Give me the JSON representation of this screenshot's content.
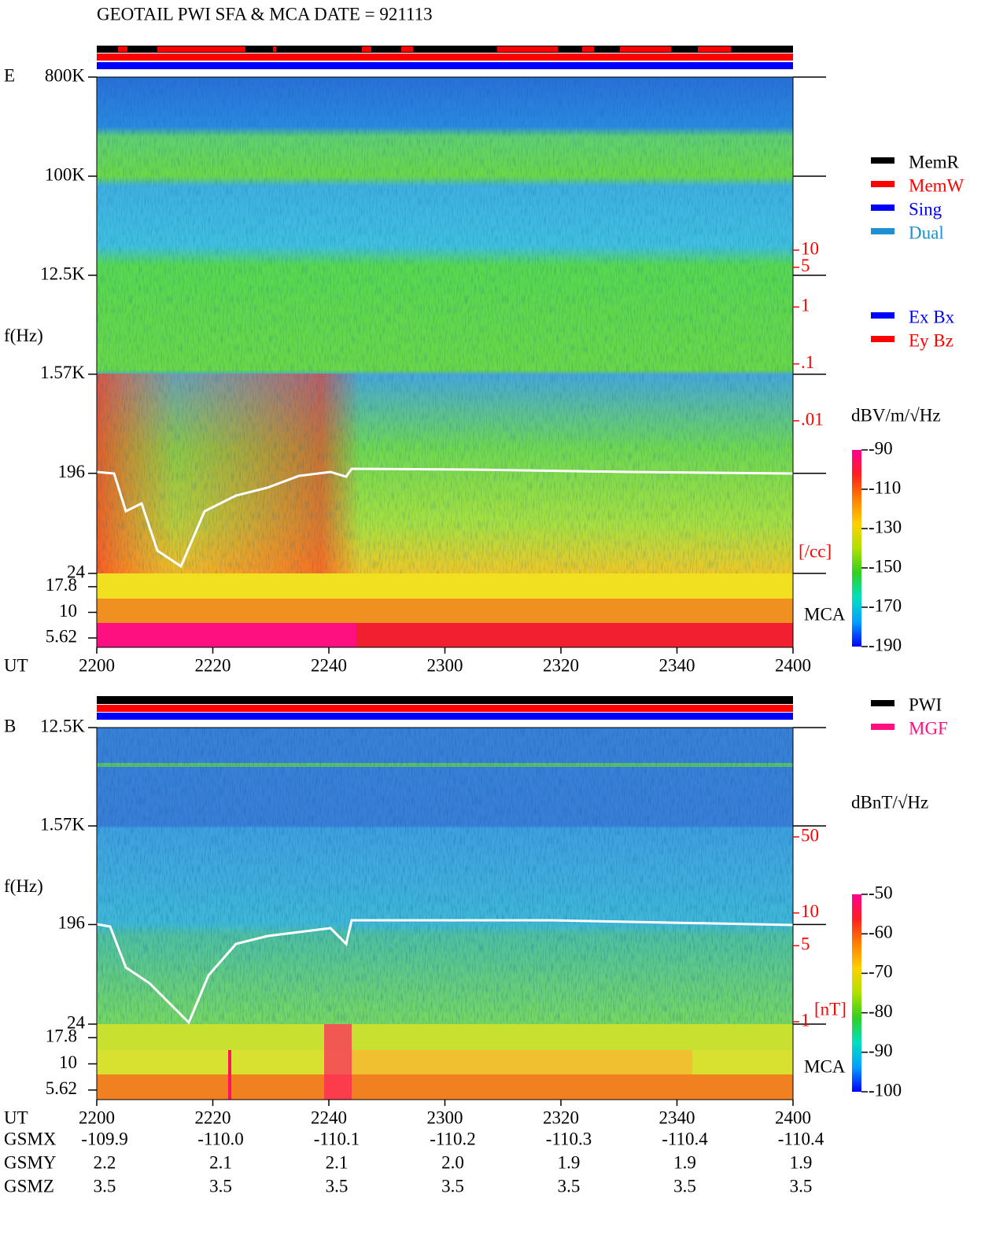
{
  "chart_data": [
    {
      "type": "spectrogram",
      "title": "GEOTAIL  PWI SFA & MCA   DATE = 921113",
      "panel_label": "E",
      "y_label": "f(Hz)",
      "x_label": "UT",
      "yscale": "log",
      "ylim": [
        24,
        800000
      ],
      "yticks": [
        {
          "value": 800000,
          "label": "800K"
        },
        {
          "value": 100000,
          "label": "100K"
        },
        {
          "value": 12500,
          "label": "12.5K"
        },
        {
          "value": 1570,
          "label": "1.57K"
        },
        196,
        24
      ],
      "mca_label": "MCA",
      "mca_ylim": [
        4.55,
        24
      ],
      "mca_yticks": [
        17.8,
        10,
        5.62
      ],
      "categories": [
        "2200",
        "2220",
        "2240",
        "2300",
        "2320",
        "2340",
        "2400"
      ],
      "y2lim": [
        0.01,
        10
      ],
      "y2ticks": [
        10,
        5,
        1,
        {
          "value": 0.1,
          "label": ".1"
        },
        {
          "value": 0.01,
          "label": ".01"
        }
      ],
      "y2_label": "[/cc]",
      "y2_color": "#ff0000",
      "colorbar": {
        "label": "dBV/m/√Hz",
        "clim": [
          -190,
          -90
        ],
        "ticks": [
          -90,
          -110,
          -130,
          -150,
          -170,
          -190
        ],
        "colors": [
          "#0000ff",
          "#00a0ff",
          "#00e0c0",
          "#30d020",
          "#b0e000",
          "#ffd000",
          "#ff8000",
          "#ff2020",
          "#ff0090"
        ]
      },
      "legend": [
        {
          "name": "MemR",
          "color": "#000000"
        },
        {
          "name": "MemW",
          "color": "#ff0000"
        },
        {
          "name": "Sing",
          "color": "#0000ff"
        },
        {
          "name": "Dual",
          "color": "#2090d0"
        }
      ],
      "legend2": [
        {
          "name": "Ex Bx",
          "color": "#0000ff"
        },
        {
          "name": "Ey Bz",
          "color": "#ff0000"
        }
      ]
    },
    {
      "type": "spectrogram",
      "panel_label": "B",
      "y_label": "f(Hz)",
      "x_label": "UT",
      "yscale": "log",
      "ylim": [
        24,
        12500
      ],
      "yticks": [
        {
          "value": 12500,
          "label": "12.5K"
        },
        {
          "value": 1570,
          "label": "1.57K"
        },
        196,
        24
      ],
      "mca_label": "MCA",
      "mca_ylim": [
        4.55,
        24
      ],
      "mca_yticks": [
        17.8,
        10,
        5.62
      ],
      "categories": [
        "2200",
        "2220",
        "2240",
        "2300",
        "2320",
        "2340",
        "2400"
      ],
      "y2lim": [
        1,
        50
      ],
      "y2ticks": [
        50,
        10,
        5,
        1
      ],
      "y2_label": "[nT]",
      "y2_color": "#ff0000",
      "colorbar": {
        "label": "dBnT/√Hz",
        "clim": [
          -100,
          -50
        ],
        "ticks": [
          -50,
          -60,
          -70,
          -80,
          -90,
          -100
        ],
        "colors": [
          "#0000ff",
          "#00a0ff",
          "#00e0c0",
          "#30d020",
          "#b0e000",
          "#ffd000",
          "#ff8000",
          "#ff2020",
          "#ff0090"
        ]
      },
      "legend": [
        {
          "name": "PWI",
          "color": "#000000"
        },
        {
          "name": "MGF",
          "color": "#ff1080"
        }
      ],
      "orbit": [
        {
          "label": "GSMX",
          "values": [
            "-109.9",
            "-110.0",
            "-110.1",
            "-110.2",
            "-110.3",
            "-110.4",
            "-110.4"
          ]
        },
        {
          "label": "GSMY",
          "values": [
            "2.2",
            "2.1",
            "2.1",
            "2.0",
            "1.9",
            "1.9",
            "1.9"
          ]
        },
        {
          "label": "GSMZ",
          "values": [
            "3.5",
            "3.5",
            "3.5",
            "3.5",
            "3.5",
            "3.5",
            "3.5"
          ]
        }
      ]
    }
  ]
}
